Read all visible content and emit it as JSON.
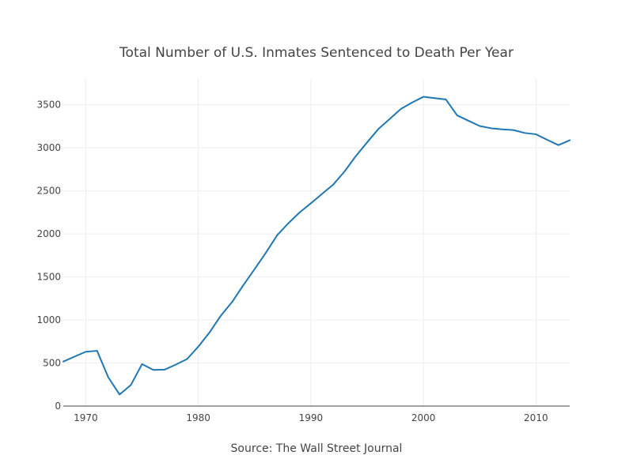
{
  "chart_data": {
    "type": "line",
    "title": "Total Number of U.S. Inmates Sentenced to Death Per Year",
    "xlabel": "Source: The Wall Street Journal",
    "ylabel": "",
    "xlim": [
      1968,
      2013
    ],
    "ylim": [
      0,
      3800
    ],
    "x_ticks": [
      1970,
      1980,
      1990,
      2000,
      2010
    ],
    "y_ticks": [
      0,
      500,
      1000,
      1500,
      2000,
      2500,
      3000,
      3500
    ],
    "grid": true,
    "color": "#1f77b4",
    "series": [
      {
        "name": "Inmates sentenced to death",
        "x": [
          1968,
          1969,
          1970,
          1971,
          1972,
          1973,
          1974,
          1975,
          1976,
          1977,
          1978,
          1979,
          1980,
          1981,
          1982,
          1983,
          1984,
          1985,
          1986,
          1987,
          1988,
          1989,
          1990,
          1991,
          1992,
          1993,
          1994,
          1995,
          1996,
          1997,
          1998,
          1999,
          2000,
          2001,
          2002,
          2003,
          2004,
          2005,
          2006,
          2007,
          2008,
          2009,
          2010,
          2011,
          2012,
          2013
        ],
        "values": [
          517,
          575,
          631,
          642,
          334,
          134,
          244,
          488,
          420,
          423,
          482,
          546,
          691,
          856,
          1050,
          1209,
          1405,
          1591,
          1781,
          1984,
          2124,
          2250,
          2356,
          2466,
          2575,
          2727,
          2905,
          3064,
          3219,
          3335,
          3452,
          3527,
          3593,
          3577,
          3562,
          3377,
          3315,
          3254,
          3228,
          3215,
          3207,
          3173,
          3158,
          3093,
          3032,
          3088
        ]
      }
    ]
  }
}
